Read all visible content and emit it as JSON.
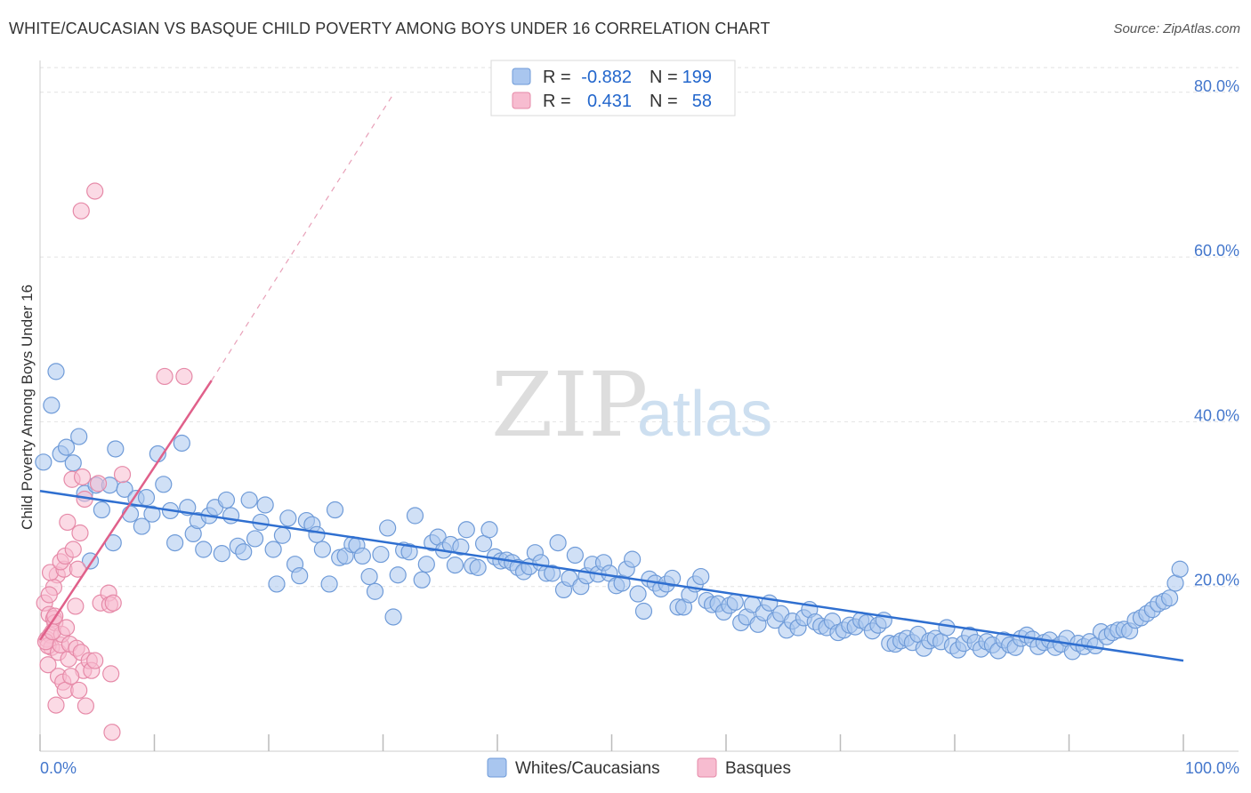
{
  "title": "WHITE/CAUCASIAN VS BASQUE CHILD POVERTY AMONG BOYS UNDER 16 CORRELATION CHART",
  "source": "Source: ZipAtlas.com",
  "watermark": {
    "zip": "ZIP",
    "atlas": "atlas"
  },
  "legend": {
    "r_label": "R =",
    "n_label": "N =",
    "rows": [
      {
        "r": "-0.882",
        "n": "199",
        "color": "#a9c6ef",
        "stroke": "#6f9bd8"
      },
      {
        "r": "0.431",
        "n": "58",
        "color": "#f7bcd0",
        "stroke": "#e68aa8"
      }
    ]
  },
  "bottom_legend": [
    "Whites/Caucasians",
    "Basques"
  ],
  "chart_data": {
    "type": "scatter",
    "title": "WHITE/CAUCASIAN VS BASQUE CHILD POVERTY AMONG BOYS UNDER 16 CORRELATION CHART",
    "xlabel": "",
    "ylabel": "Child Poverty Among Boys Under 16",
    "xlim": [
      0,
      100
    ],
    "ylim": [
      0,
      83
    ],
    "y_ticks": [
      20,
      40,
      60,
      80
    ],
    "y_tick_labels": [
      "20.0%",
      "40.0%",
      "60.0%",
      "80.0%"
    ],
    "x_tick_labels": [
      "0.0%",
      "100.0%"
    ],
    "grid": true,
    "legend_position": "top-center",
    "series": [
      {
        "name": "Whites/Caucasians",
        "color": "#a9c6ef",
        "stroke": "#6f9bd8",
        "r": -0.882,
        "n": 199,
        "trend": {
          "x": [
            0,
            100
          ],
          "y": [
            31.6,
            11.0
          ]
        },
        "points": [
          [
            0.3,
            35.1
          ],
          [
            1.0,
            42.0
          ],
          [
            1.4,
            46.1
          ],
          [
            1.8,
            36.1
          ],
          [
            2.3,
            36.9
          ],
          [
            2.9,
            35.0
          ],
          [
            3.4,
            38.2
          ],
          [
            3.9,
            31.3
          ],
          [
            4.4,
            23.1
          ],
          [
            4.9,
            32.3
          ],
          [
            5.4,
            29.3
          ],
          [
            6.1,
            32.3
          ],
          [
            6.4,
            25.3
          ],
          [
            6.6,
            36.7
          ],
          [
            7.4,
            31.8
          ],
          [
            7.9,
            28.8
          ],
          [
            8.4,
            30.7
          ],
          [
            8.9,
            27.3
          ],
          [
            9.3,
            30.8
          ],
          [
            9.8,
            28.8
          ],
          [
            10.3,
            36.1
          ],
          [
            10.8,
            32.4
          ],
          [
            11.4,
            29.2
          ],
          [
            11.8,
            25.3
          ],
          [
            12.4,
            37.4
          ],
          [
            12.9,
            29.6
          ],
          [
            13.4,
            26.4
          ],
          [
            13.8,
            28.0
          ],
          [
            14.3,
            24.5
          ],
          [
            14.8,
            28.6
          ],
          [
            15.3,
            29.6
          ],
          [
            15.9,
            24.0
          ],
          [
            16.3,
            30.5
          ],
          [
            16.7,
            28.6
          ],
          [
            17.3,
            24.9
          ],
          [
            17.8,
            24.2
          ],
          [
            18.3,
            30.5
          ],
          [
            18.8,
            25.8
          ],
          [
            19.3,
            27.8
          ],
          [
            19.7,
            29.9
          ],
          [
            20.4,
            24.5
          ],
          [
            20.7,
            20.3
          ],
          [
            21.2,
            26.2
          ],
          [
            21.7,
            28.3
          ],
          [
            22.3,
            22.7
          ],
          [
            22.7,
            21.3
          ],
          [
            23.3,
            28.0
          ],
          [
            23.8,
            27.5
          ],
          [
            24.2,
            26.3
          ],
          [
            24.7,
            24.5
          ],
          [
            25.3,
            20.3
          ],
          [
            25.8,
            29.3
          ],
          [
            26.2,
            23.5
          ],
          [
            26.7,
            23.7
          ],
          [
            27.3,
            25.1
          ],
          [
            27.7,
            25.0
          ],
          [
            28.2,
            23.7
          ],
          [
            28.8,
            21.2
          ],
          [
            29.3,
            19.4
          ],
          [
            29.8,
            23.9
          ],
          [
            30.4,
            27.1
          ],
          [
            30.9,
            16.3
          ],
          [
            31.3,
            21.4
          ],
          [
            31.8,
            24.4
          ],
          [
            32.3,
            24.2
          ],
          [
            32.8,
            28.6
          ],
          [
            33.4,
            20.8
          ],
          [
            33.8,
            22.7
          ],
          [
            34.3,
            25.3
          ],
          [
            34.8,
            26.0
          ],
          [
            35.3,
            24.4
          ],
          [
            35.9,
            25.1
          ],
          [
            36.3,
            22.6
          ],
          [
            36.8,
            24.8
          ],
          [
            37.3,
            26.9
          ],
          [
            37.8,
            22.5
          ],
          [
            38.3,
            22.3
          ],
          [
            38.8,
            25.2
          ],
          [
            39.3,
            26.9
          ],
          [
            39.8,
            23.6
          ],
          [
            40.3,
            23.1
          ],
          [
            40.8,
            23.2
          ],
          [
            41.3,
            22.9
          ],
          [
            41.8,
            22.3
          ],
          [
            42.3,
            21.8
          ],
          [
            42.8,
            22.4
          ],
          [
            43.3,
            24.1
          ],
          [
            43.8,
            22.9
          ],
          [
            44.3,
            21.6
          ],
          [
            44.8,
            21.6
          ],
          [
            45.3,
            25.3
          ],
          [
            45.8,
            19.6
          ],
          [
            46.3,
            21.0
          ],
          [
            46.8,
            23.8
          ],
          [
            47.3,
            20.0
          ],
          [
            47.8,
            21.3
          ],
          [
            48.3,
            22.7
          ],
          [
            48.8,
            21.5
          ],
          [
            49.3,
            22.9
          ],
          [
            49.8,
            21.6
          ],
          [
            50.4,
            20.1
          ],
          [
            50.9,
            20.4
          ],
          [
            51.3,
            22.1
          ],
          [
            51.8,
            23.3
          ],
          [
            52.3,
            19.1
          ],
          [
            52.8,
            17.0
          ],
          [
            53.3,
            20.9
          ],
          [
            53.8,
            20.4
          ],
          [
            54.3,
            19.7
          ],
          [
            54.8,
            20.3
          ],
          [
            55.3,
            21.0
          ],
          [
            55.8,
            17.5
          ],
          [
            56.3,
            17.5
          ],
          [
            56.8,
            19.0
          ],
          [
            57.3,
            20.3
          ],
          [
            57.8,
            21.2
          ],
          [
            58.3,
            18.3
          ],
          [
            58.8,
            17.8
          ],
          [
            59.3,
            17.9
          ],
          [
            59.8,
            16.9
          ],
          [
            60.3,
            17.7
          ],
          [
            60.8,
            18.1
          ],
          [
            61.3,
            15.6
          ],
          [
            61.8,
            16.3
          ],
          [
            62.3,
            17.8
          ],
          [
            62.8,
            15.4
          ],
          [
            63.3,
            16.8
          ],
          [
            63.8,
            18.0
          ],
          [
            64.3,
            15.9
          ],
          [
            64.8,
            16.7
          ],
          [
            65.3,
            14.7
          ],
          [
            65.8,
            15.8
          ],
          [
            66.3,
            15.0
          ],
          [
            66.8,
            16.2
          ],
          [
            67.3,
            17.2
          ],
          [
            67.8,
            15.7
          ],
          [
            68.3,
            15.2
          ],
          [
            68.8,
            15.0
          ],
          [
            69.3,
            15.8
          ],
          [
            69.8,
            14.4
          ],
          [
            70.3,
            14.7
          ],
          [
            70.8,
            15.3
          ],
          [
            71.3,
            15.1
          ],
          [
            71.8,
            15.9
          ],
          [
            72.3,
            15.6
          ],
          [
            72.8,
            14.6
          ],
          [
            73.3,
            15.3
          ],
          [
            73.8,
            15.9
          ],
          [
            74.3,
            13.1
          ],
          [
            74.8,
            13.0
          ],
          [
            75.3,
            13.4
          ],
          [
            75.8,
            13.7
          ],
          [
            76.3,
            13.2
          ],
          [
            76.8,
            14.2
          ],
          [
            77.3,
            12.5
          ],
          [
            77.8,
            13.4
          ],
          [
            78.3,
            13.7
          ],
          [
            78.8,
            13.3
          ],
          [
            79.3,
            15.0
          ],
          [
            79.8,
            12.8
          ],
          [
            80.3,
            12.3
          ],
          [
            80.8,
            13.1
          ],
          [
            81.3,
            14.1
          ],
          [
            81.8,
            13.2
          ],
          [
            82.3,
            12.4
          ],
          [
            82.8,
            13.3
          ],
          [
            83.3,
            12.9
          ],
          [
            83.8,
            12.2
          ],
          [
            84.3,
            13.5
          ],
          [
            84.8,
            12.9
          ],
          [
            85.3,
            12.6
          ],
          [
            85.8,
            13.7
          ],
          [
            86.3,
            14.1
          ],
          [
            86.8,
            13.6
          ],
          [
            87.3,
            12.7
          ],
          [
            87.8,
            13.2
          ],
          [
            88.3,
            13.5
          ],
          [
            88.8,
            12.6
          ],
          [
            89.3,
            13.0
          ],
          [
            89.8,
            13.7
          ],
          [
            90.3,
            12.1
          ],
          [
            90.8,
            13.1
          ],
          [
            91.3,
            12.7
          ],
          [
            91.8,
            13.3
          ],
          [
            92.3,
            12.8
          ],
          [
            92.8,
            14.5
          ],
          [
            93.3,
            13.9
          ],
          [
            93.8,
            14.4
          ],
          [
            94.3,
            14.7
          ],
          [
            94.8,
            14.8
          ],
          [
            95.3,
            14.6
          ],
          [
            95.8,
            15.9
          ],
          [
            96.3,
            16.2
          ],
          [
            96.8,
            16.7
          ],
          [
            97.3,
            17.2
          ],
          [
            97.8,
            17.9
          ],
          [
            98.3,
            18.2
          ],
          [
            98.8,
            18.6
          ],
          [
            99.3,
            20.4
          ],
          [
            99.7,
            22.1
          ]
        ]
      },
      {
        "name": "Basques",
        "color": "#f7bcd0",
        "stroke": "#e68aa8",
        "r": 0.431,
        "n": 58,
        "trend": {
          "x": [
            0,
            15
          ],
          "y": [
            13.5,
            45.0
          ],
          "dash_to": [
            31,
            80.0
          ]
        },
        "points": [
          [
            0.4,
            18.0
          ],
          [
            0.6,
            13.6
          ],
          [
            0.7,
            10.5
          ],
          [
            0.8,
            16.6
          ],
          [
            0.9,
            14.1
          ],
          [
            1.0,
            12.6
          ],
          [
            0.7,
            12.8
          ],
          [
            0.5,
            13.3
          ],
          [
            1.2,
            16.1
          ],
          [
            1.3,
            15.6
          ],
          [
            1.5,
            21.4
          ],
          [
            1.6,
            12.0
          ],
          [
            1.8,
            12.9
          ],
          [
            1.9,
            14.2
          ],
          [
            1.2,
            19.9
          ],
          [
            0.9,
            21.7
          ],
          [
            1.4,
            5.6
          ],
          [
            1.6,
            9.1
          ],
          [
            2.0,
            8.4
          ],
          [
            2.1,
            22.1
          ],
          [
            1.8,
            23.0
          ],
          [
            2.2,
            23.7
          ],
          [
            2.4,
            27.8
          ],
          [
            2.5,
            11.2
          ],
          [
            2.6,
            13.0
          ],
          [
            2.2,
            7.4
          ],
          [
            2.8,
            33.0
          ],
          [
            2.9,
            24.5
          ],
          [
            3.1,
            17.6
          ],
          [
            3.2,
            12.5
          ],
          [
            3.3,
            22.1
          ],
          [
            3.4,
            7.4
          ],
          [
            3.5,
            26.5
          ],
          [
            3.7,
            33.3
          ],
          [
            3.8,
            9.8
          ],
          [
            3.9,
            30.6
          ],
          [
            4.0,
            5.5
          ],
          [
            1.1,
            14.5
          ],
          [
            3.6,
            12.0
          ],
          [
            2.7,
            9.1
          ],
          [
            4.3,
            11.0
          ],
          [
            4.5,
            9.8
          ],
          [
            4.8,
            11.0
          ],
          [
            5.1,
            32.5
          ],
          [
            5.3,
            18.0
          ],
          [
            6.0,
            19.2
          ],
          [
            6.1,
            17.8
          ],
          [
            6.4,
            18.0
          ],
          [
            6.2,
            9.4
          ],
          [
            6.3,
            2.3
          ],
          [
            7.2,
            33.6
          ],
          [
            3.6,
            65.6
          ],
          [
            4.8,
            68.0
          ],
          [
            10.9,
            45.5
          ],
          [
            12.6,
            45.5
          ],
          [
            1.3,
            16.4
          ],
          [
            0.8,
            19.0
          ],
          [
            2.3,
            15.0
          ]
        ]
      }
    ]
  }
}
